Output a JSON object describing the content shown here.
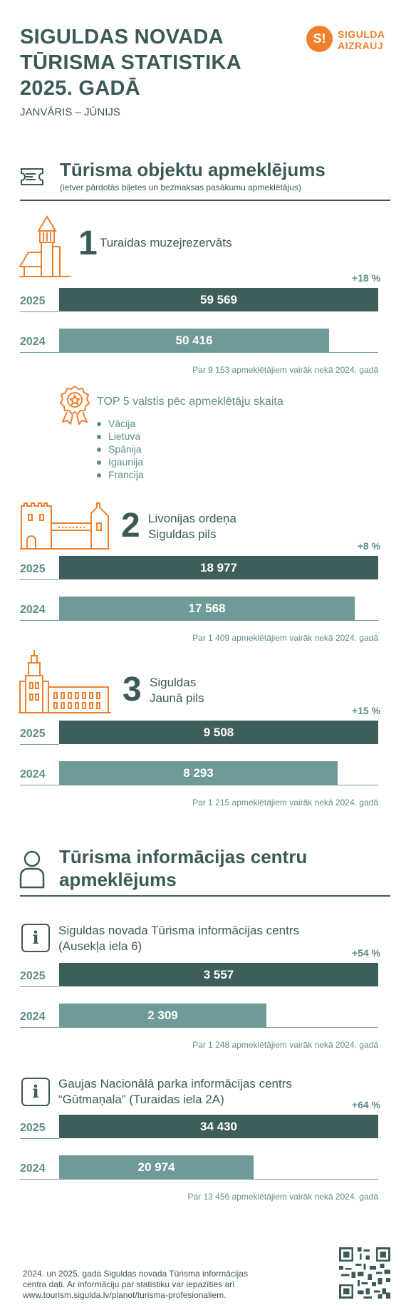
{
  "header": {
    "title_lines": [
      "SIGULDAS NOVADA",
      "TŪRISMA STATISTIKA",
      "2025. GADĀ"
    ],
    "period": "JANVĀRIS – JŪNIJS",
    "logo_mark": "S!",
    "logo_line1": "SIGULDA",
    "logo_line2": "AIZRAUJ",
    "brand_color": "#f07f2e"
  },
  "section1": {
    "title": "Tūrisma objektu apmeklējums",
    "subtitle": "(ietver pārdotās biļetes un bezmaksas pasākumu apmeklētājus)",
    "icon": "ticket-icon"
  },
  "section2": {
    "title_line1": "Tūrisma informācijas centru",
    "title_line2": "apmeklējums",
    "icon": "person-icon"
  },
  "top5": {
    "title": "TOP 5 valstis pēc apmeklētāju skaita",
    "countries": [
      "Vācija",
      "Lietuva",
      "Spānija",
      "Igaunija",
      "Francija"
    ],
    "icon": "award-badge-icon"
  },
  "info_icon_glyph": "i",
  "chart_data": [
    {
      "type": "bar",
      "rank": "1",
      "name_lines": [
        "Turaidas muzejrezervāts"
      ],
      "categories": [
        "2025",
        "2024"
      ],
      "values": [
        59569,
        50416
      ],
      "labels": [
        "59 569",
        "50 416"
      ],
      "change": "+18 %",
      "note": "Par 9 153 apmeklētājiem vairāk nekā 2024. gadā"
    },
    {
      "type": "bar",
      "rank": "2",
      "name_lines": [
        "Livonijas ordeņa",
        "Siguldas pils"
      ],
      "categories": [
        "2025",
        "2024"
      ],
      "values": [
        18977,
        17568
      ],
      "labels": [
        "18 977",
        "17 568"
      ],
      "change": "+8 %",
      "note": "Par 1 409 apmeklētājiem vairāk nekā 2024. gadā"
    },
    {
      "type": "bar",
      "rank": "3",
      "name_lines": [
        "Siguldas",
        "Jaunā pils"
      ],
      "categories": [
        "2025",
        "2024"
      ],
      "values": [
        9508,
        8293
      ],
      "labels": [
        "9 508",
        "8 293"
      ],
      "change": "+15 %",
      "note": "Par 1 215 apmeklētājiem vairāk nekā 2024. gadā"
    },
    {
      "type": "bar",
      "name_lines": [
        "Siguldas novada Tūrisma informācijas centrs",
        "(Ausekļa iela 6)"
      ],
      "categories": [
        "2025",
        "2024"
      ],
      "values": [
        3557,
        2309
      ],
      "labels": [
        "3 557",
        "2 309"
      ],
      "change": "+54 %",
      "note": "Par 1 248 apmeklētājiem vairāk nekā 2024. gadā"
    },
    {
      "type": "bar",
      "name_lines": [
        "Gaujas Nacionālā parka informācijas centrs",
        "“Gūtmaņala” (Turaidas iela 2A)"
      ],
      "categories": [
        "2025",
        "2024"
      ],
      "values": [
        34430,
        20974
      ],
      "labels": [
        "34 430",
        "20 974"
      ],
      "change": "+64 %",
      "note": "Par 13 456 apmeklētājiem vairāk nekā 2024. gadā"
    }
  ],
  "footer": {
    "lines": [
      "2024. un 2025. gada Siguldas novada Tūrisma informācijas",
      "centra dati. Ar informāciju par statistiku var iepazīties arī",
      "www.tourism.sigulda.lv/planot/turisma-profesionaliem."
    ],
    "qr_icon": "qr-code-icon"
  }
}
